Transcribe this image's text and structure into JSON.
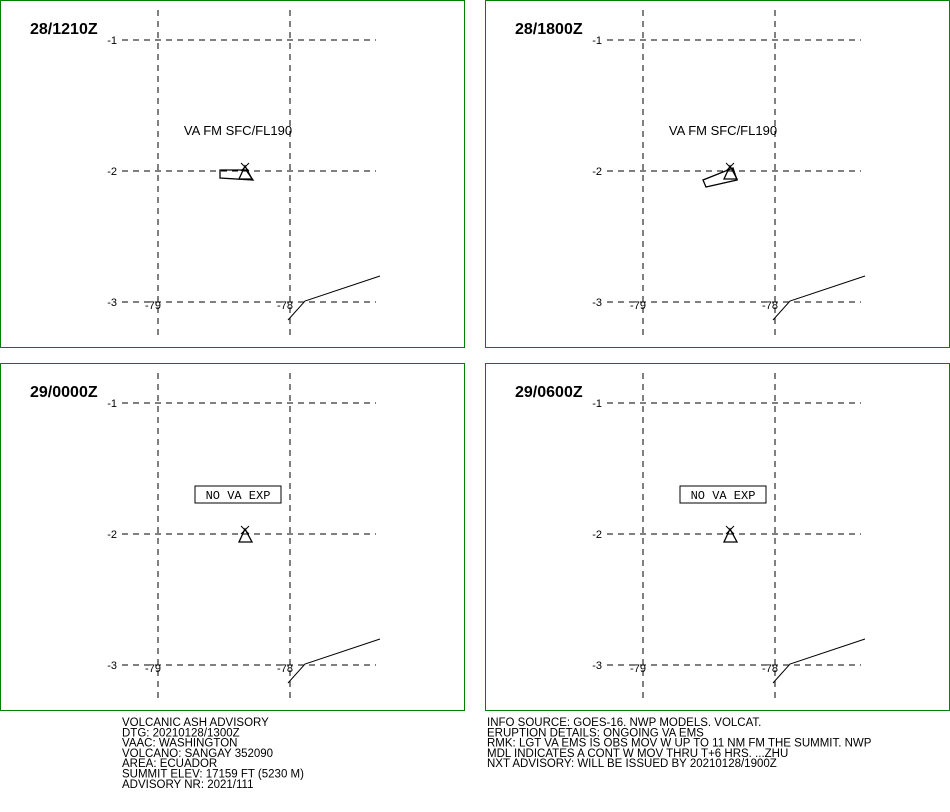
{
  "panels": [
    {
      "time": "28/1210Z",
      "annotation": "VA FM SFC/FL190"
    },
    {
      "time": "28/1800Z",
      "annotation": "VA FM SFC/FL190"
    },
    {
      "time": "29/0000Z",
      "annotation": "NO VA EXP"
    },
    {
      "time": "29/0600Z",
      "annotation": "NO VA EXP"
    }
  ],
  "lat_labels": [
    "-1",
    "-2",
    "-3"
  ],
  "lon_labels": [
    "-79",
    "-78"
  ],
  "footer": {
    "left": [
      "VOLCANIC ASH ADVISORY",
      "DTG: 20210128/1300Z",
      "VAAC: WASHINGTON",
      "VOLCANO: SANGAY 352090",
      "AREA: ECUADOR",
      "SUMMIT ELEV: 17159 FT (5230 M)",
      "ADVISORY NR: 2021/111"
    ],
    "right": [
      "INFO SOURCE: GOES-16. NWP MODELS. VOLCAT.",
      "ERUPTION DETAILS: ONGOING VA EMS",
      "RMK: LGT VA EMS IS OBS MOV W UP TO 11 NM FM THE SUMMIT. NWP",
      "MDL INDICATES A CONT W MOV THRU T+6 HRS. ...ZHU",
      "NXT ADVISORY: WILL BE ISSUED BY 20210128/1900Z"
    ]
  }
}
